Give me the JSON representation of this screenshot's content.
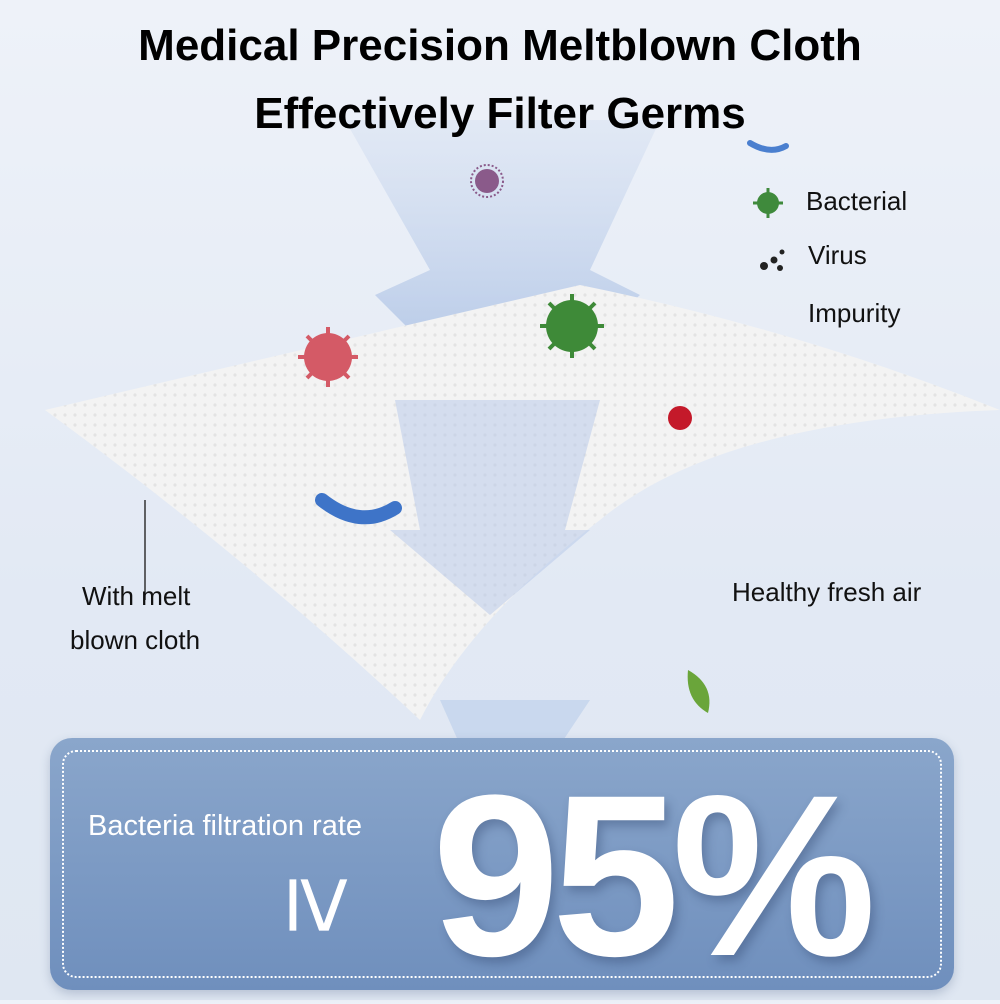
{
  "header": {
    "line1": "Medical Precision Meltblown Cloth",
    "line2": "Effectively Filter Germs"
  },
  "legend": [
    {
      "label": "Bacterial",
      "icon": "bacteria-icon",
      "color": "#3f8a3c"
    },
    {
      "label": "Virus",
      "icon": "virus-dots-icon",
      "color": "#222222"
    },
    {
      "label": "Impurity",
      "icon": "",
      "color": ""
    }
  ],
  "captions": {
    "cloth_line1": "With melt",
    "cloth_line2": "blown cloth",
    "air": "Healthy fresh air"
  },
  "panel": {
    "label": "Bacteria filtration rate",
    "symbol": "≥",
    "value": "95%",
    "color": "#7896c2"
  }
}
